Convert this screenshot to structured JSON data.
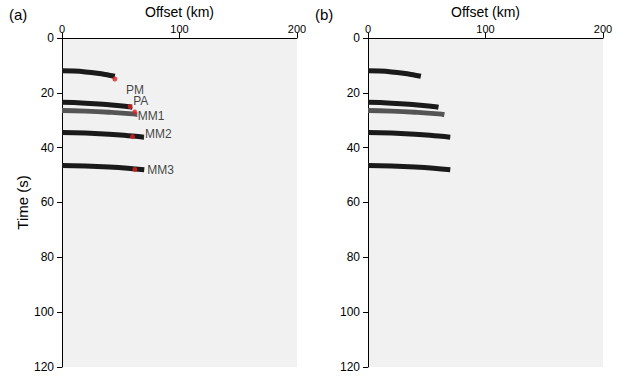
{
  "chart_data": [
    {
      "type": "line",
      "title": "(a)",
      "x_label": "Offset (km)",
      "y_label": "Time (s)",
      "xlim": [
        0,
        200
      ],
      "xticks": [
        0,
        100,
        200
      ],
      "ylim": [
        0,
        120
      ],
      "yticks": [
        0,
        20,
        40,
        60,
        80,
        100,
        120
      ],
      "series": [
        {
          "type": "line",
          "color": "#1a1a1a",
          "x": [
            0,
            10,
            20,
            30,
            40,
            45
          ],
          "values": [
            12,
            12.1,
            12.4,
            12.9,
            13.6,
            14
          ]
        },
        {
          "type": "line",
          "color": "#1a1a1a",
          "x": [
            0,
            20,
            40,
            55,
            60
          ],
          "values": [
            23.5,
            23.8,
            24.4,
            25,
            25.3
          ]
        },
        {
          "type": "line",
          "color": "#555555",
          "x": [
            0,
            20,
            40,
            60,
            65
          ],
          "values": [
            26.5,
            26.7,
            27.1,
            27.7,
            28
          ]
        },
        {
          "type": "line",
          "color": "#1a1a1a",
          "x": [
            0,
            20,
            40,
            60,
            70
          ],
          "values": [
            34.5,
            34.7,
            35.1,
            35.8,
            36.2
          ]
        },
        {
          "type": "line",
          "color": "#1a1a1a",
          "x": [
            0,
            20,
            40,
            60,
            70
          ],
          "values": [
            46.5,
            46.7,
            47.1,
            47.7,
            48.1
          ]
        },
        {
          "type": "scatter",
          "marker": "circle",
          "color": "#e02020",
          "x": [
            45,
            58,
            62,
            60,
            62
          ],
          "values": [
            15,
            25,
            27,
            36,
            48
          ]
        }
      ],
      "annotations": [
        {
          "text": "PM",
          "x": 52,
          "y": 19
        },
        {
          "text": "PA",
          "x": 58,
          "y": 23
        },
        {
          "text": "MM1",
          "x": 62,
          "y": 28.5
        },
        {
          "text": "MM2",
          "x": 68,
          "y": 35
        },
        {
          "text": "MM3",
          "x": 70,
          "y": 48
        }
      ]
    },
    {
      "type": "line",
      "title": "(b)",
      "x_label": "Offset (km)",
      "xlim": [
        0,
        200
      ],
      "xticks": [
        0,
        100,
        200
      ],
      "ylim": [
        0,
        120
      ],
      "yticks": [
        0,
        20,
        40,
        60,
        80,
        100,
        120
      ],
      "series": [
        {
          "type": "line",
          "color": "#1a1a1a",
          "x": [
            0,
            10,
            20,
            30,
            40,
            45
          ],
          "values": [
            12,
            12.1,
            12.4,
            12.9,
            13.6,
            14
          ]
        },
        {
          "type": "line",
          "color": "#1a1a1a",
          "x": [
            0,
            20,
            40,
            55,
            60
          ],
          "values": [
            23.5,
            23.8,
            24.4,
            25,
            25.3
          ]
        },
        {
          "type": "line",
          "color": "#555555",
          "x": [
            0,
            20,
            40,
            60,
            65
          ],
          "values": [
            26.5,
            26.7,
            27.1,
            27.7,
            28
          ]
        },
        {
          "type": "line",
          "color": "#1a1a1a",
          "x": [
            0,
            20,
            40,
            60,
            70
          ],
          "values": [
            34.5,
            34.7,
            35.1,
            35.8,
            36.2
          ]
        },
        {
          "type": "line",
          "color": "#1a1a1a",
          "x": [
            0,
            20,
            40,
            60,
            70
          ],
          "values": [
            46.5,
            46.7,
            47.1,
            47.7,
            48.1
          ]
        }
      ]
    }
  ]
}
